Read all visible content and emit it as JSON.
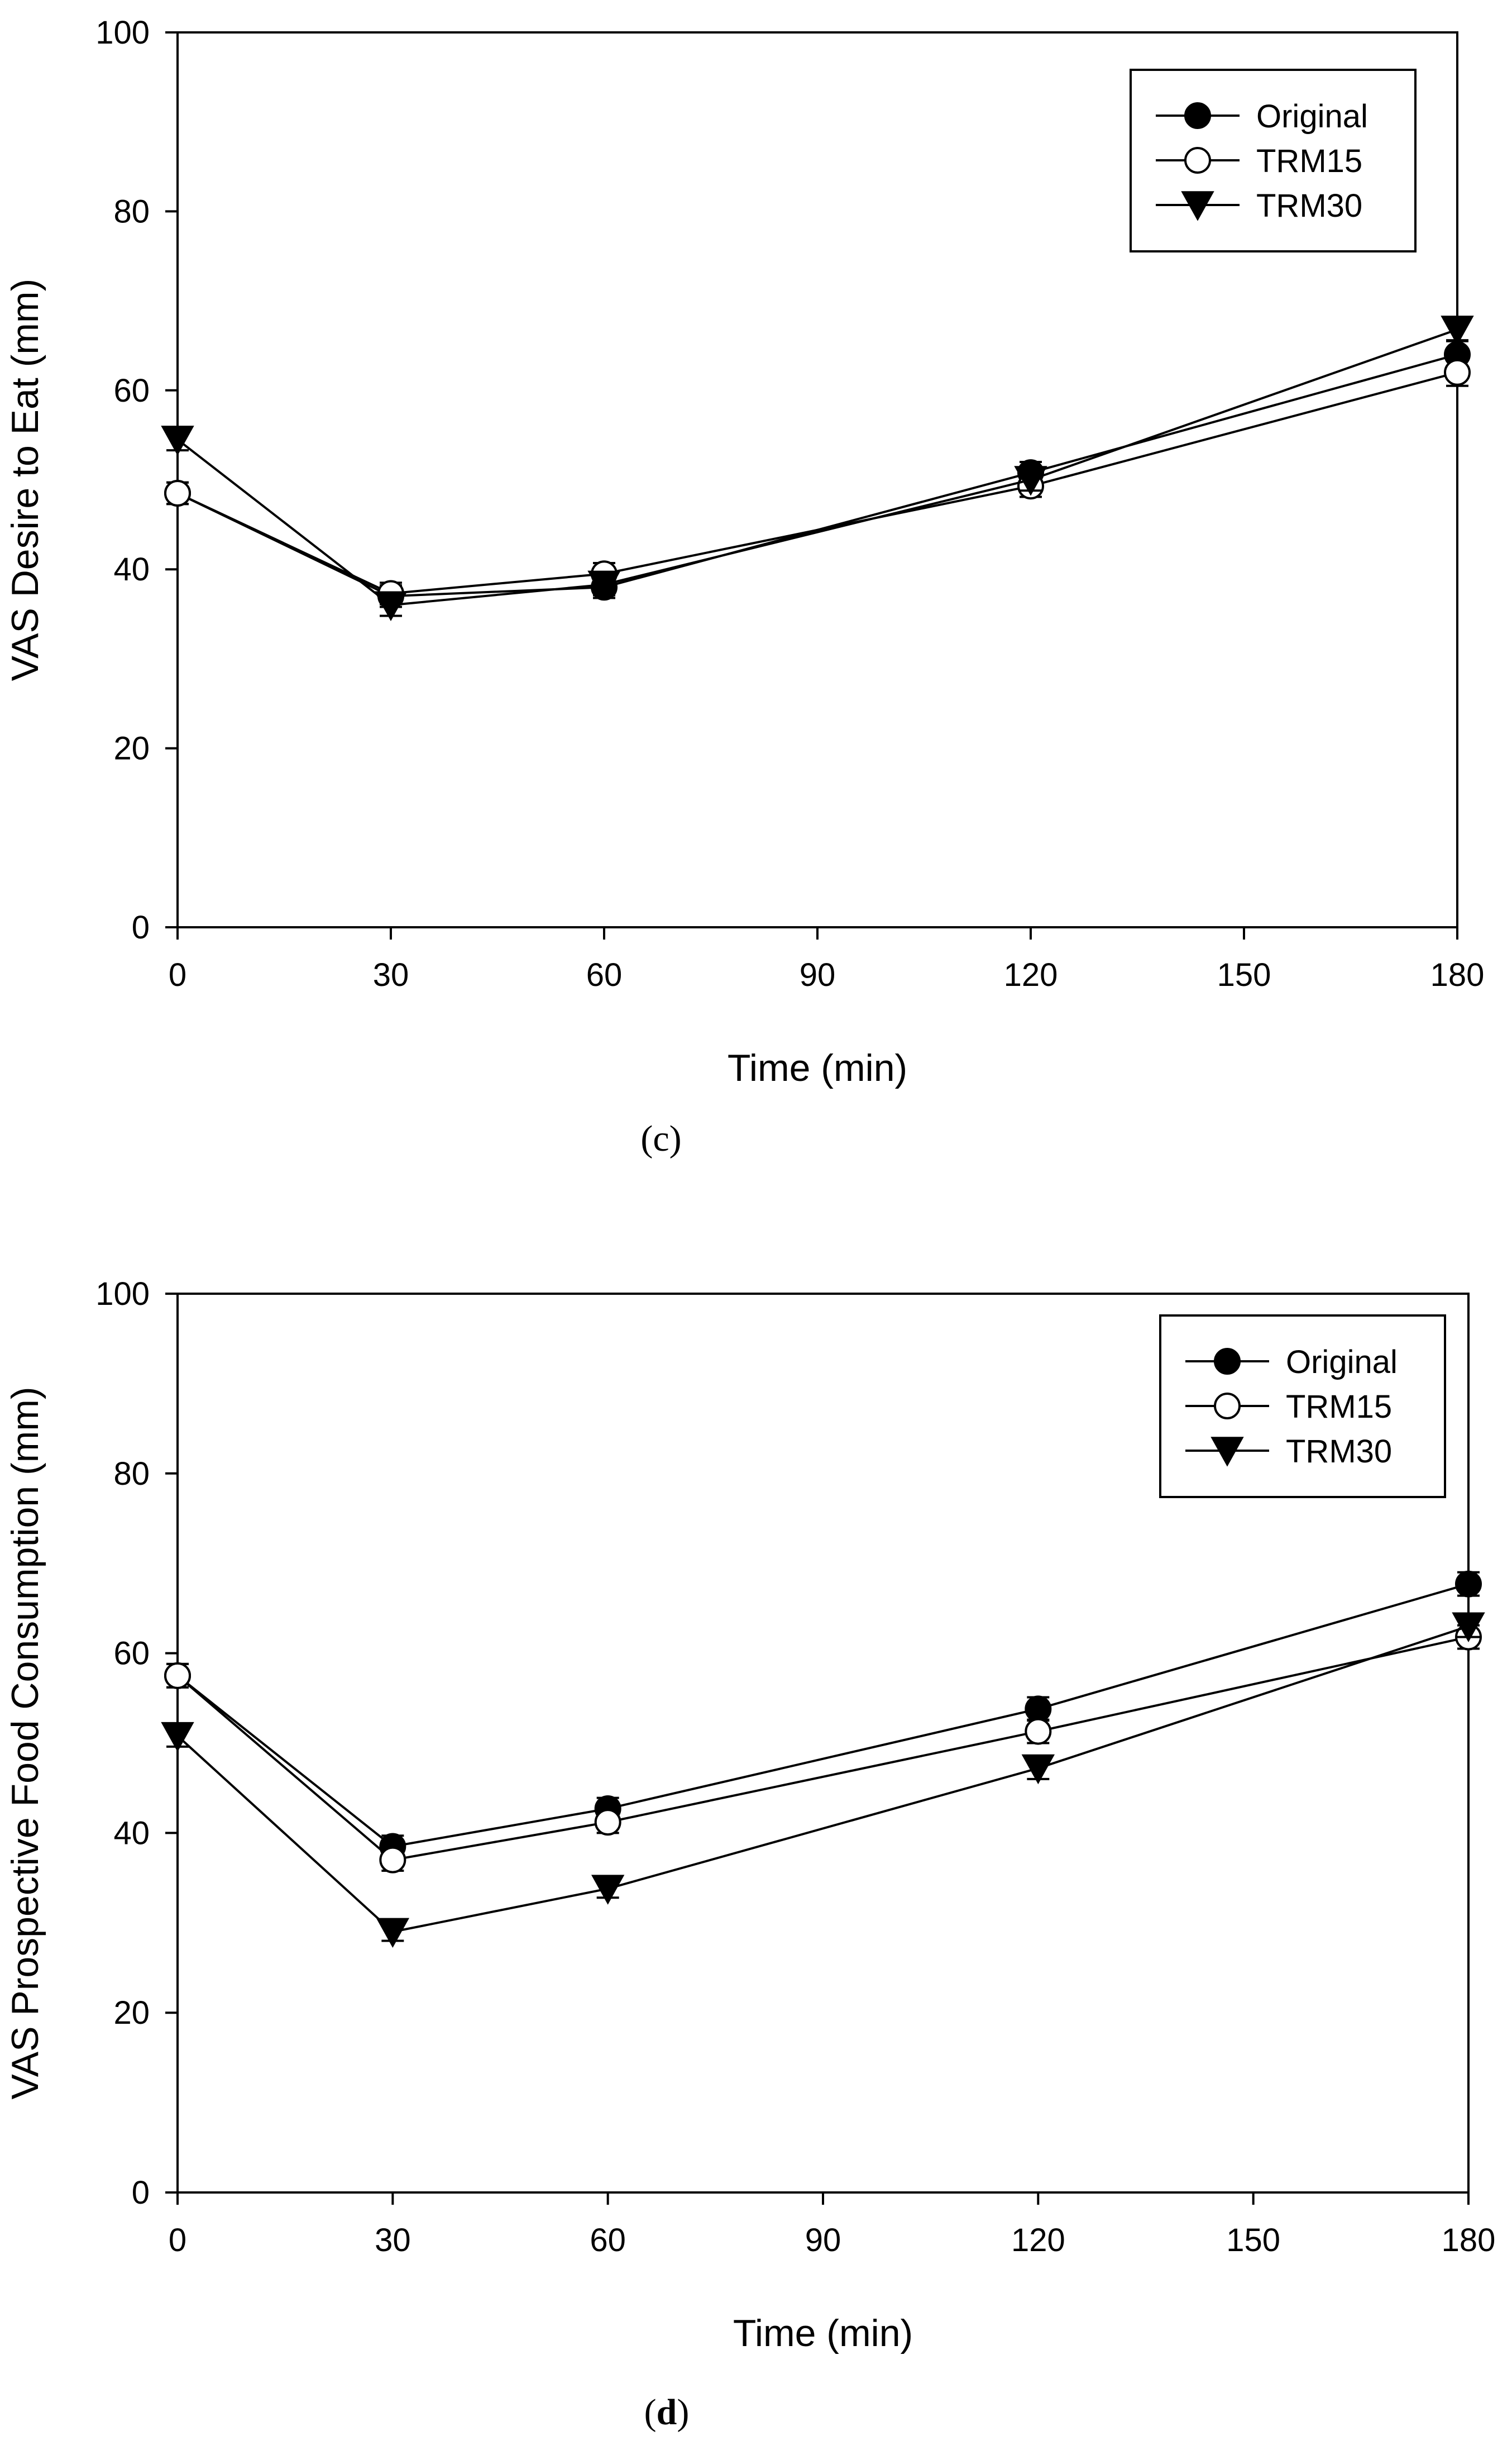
{
  "chart_data": [
    {
      "type": "line",
      "panel_label": "c",
      "x": [
        0,
        30,
        60,
        120,
        180
      ],
      "xlabel": "Time (min)",
      "ylabel": "VAS Desire to Eat (mm)",
      "xlim": [
        0,
        180
      ],
      "ylim": [
        0,
        100
      ],
      "xticks": [
        0,
        30,
        60,
        90,
        120,
        150,
        180
      ],
      "yticks": [
        0,
        20,
        40,
        60,
        80,
        100
      ],
      "legend_position": "top-right",
      "series": [
        {
          "name": "Original",
          "marker": "filled-circle",
          "values": [
            48.5,
            37.0,
            38.0,
            50.8,
            64.0
          ],
          "errors": [
            1.2,
            1.2,
            1.2,
            1.2,
            1.5
          ]
        },
        {
          "name": "TRM15",
          "marker": "open-circle",
          "values": [
            48.5,
            37.3,
            39.5,
            49.3,
            62.0
          ],
          "errors": [
            1.2,
            1.2,
            1.2,
            1.2,
            1.5
          ]
        },
        {
          "name": "TRM30",
          "marker": "filled-triangle-down",
          "values": [
            54.5,
            36.0,
            38.3,
            50.0,
            66.8
          ],
          "errors": [
            1.2,
            1.2,
            1.2,
            1.2,
            1.2
          ]
        }
      ]
    },
    {
      "type": "line",
      "panel_label": "d",
      "x": [
        0,
        30,
        60,
        120,
        180
      ],
      "xlabel": "Time (min)",
      "ylabel": "VAS Prospective Food Consumption (mm)",
      "xlim": [
        0,
        180
      ],
      "ylim": [
        0,
        100
      ],
      "xticks": [
        0,
        30,
        60,
        90,
        120,
        150,
        180
      ],
      "yticks": [
        0,
        20,
        40,
        60,
        80,
        100
      ],
      "legend_position": "top-right",
      "series": [
        {
          "name": "Original",
          "marker": "filled-circle",
          "values": [
            57.5,
            38.5,
            42.7,
            53.8,
            67.7
          ],
          "errors": [
            1.3,
            1.2,
            1.2,
            1.3,
            1.3
          ]
        },
        {
          "name": "TRM15",
          "marker": "open-circle",
          "values": [
            57.5,
            37.0,
            41.2,
            51.3,
            61.8
          ],
          "errors": [
            1.3,
            1.2,
            1.2,
            1.3,
            1.3
          ]
        },
        {
          "name": "TRM30",
          "marker": "filled-triangle-down",
          "values": [
            50.8,
            29.0,
            33.8,
            47.2,
            63.0
          ],
          "errors": [
            1.2,
            1.0,
            1.0,
            1.2,
            1.2
          ]
        }
      ]
    }
  ]
}
